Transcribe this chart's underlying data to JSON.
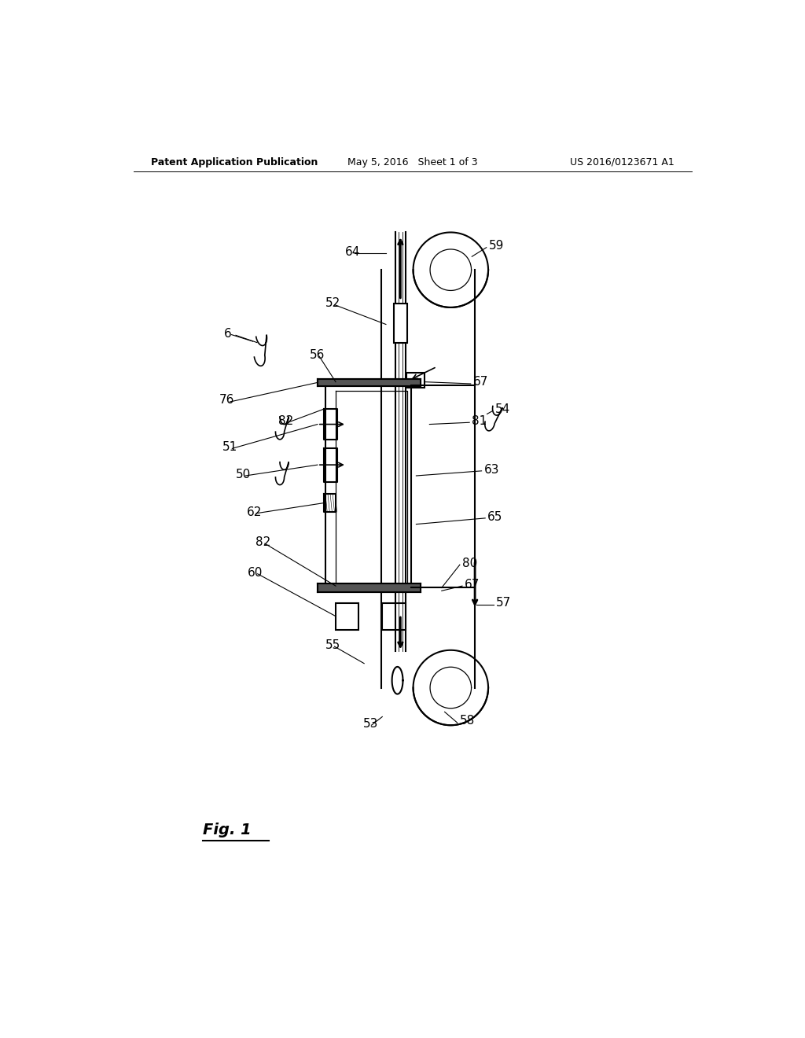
{
  "bg_color": "#ffffff",
  "header_left": "Patent Application Publication",
  "header_center": "May 5, 2016   Sheet 1 of 3",
  "header_right": "US 2016/0123671 A1",
  "fig_label": "Fig. 1"
}
